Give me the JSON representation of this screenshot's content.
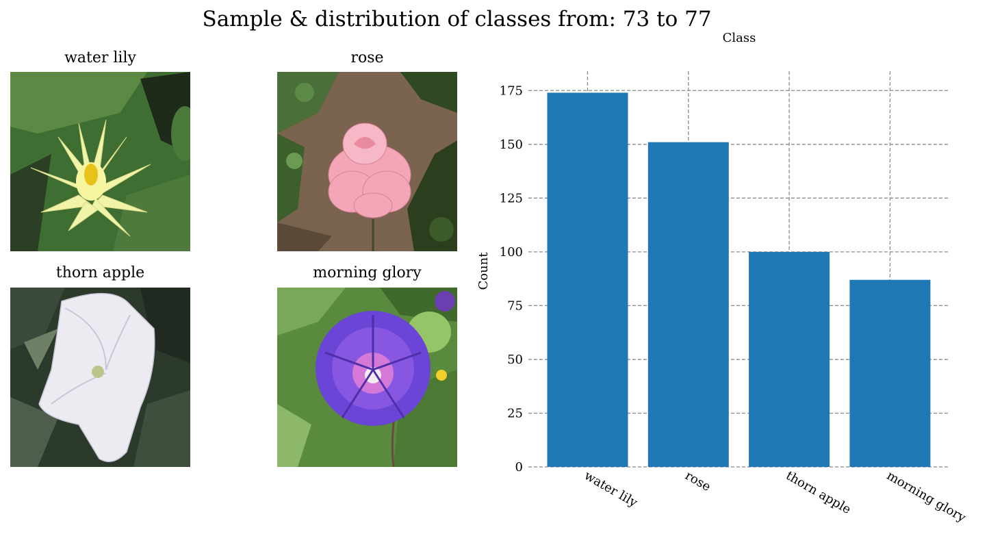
{
  "figure": {
    "title": "Sample & distribution of classes from: 73 to 77"
  },
  "samples": [
    {
      "label": "water lily",
      "icon": "water-lily-photo"
    },
    {
      "label": "rose",
      "icon": "rose-photo"
    },
    {
      "label": "thorn apple",
      "icon": "thorn-apple-photo"
    },
    {
      "label": "morning glory",
      "icon": "morning-glory-photo"
    }
  ],
  "chart_data": {
    "type": "bar",
    "title": "",
    "xlabel": "Class",
    "ylabel": "Count",
    "categories": [
      "water lily",
      "rose",
      "thorn apple",
      "morning glory"
    ],
    "values": [
      174,
      151,
      100,
      87
    ],
    "ylim": [
      0,
      184
    ],
    "yticks": [
      0,
      25,
      50,
      75,
      100,
      125,
      150,
      175
    ],
    "grid": true,
    "grid_style": "dashed",
    "bar_color": "#1f77b4",
    "xlabel_position": "top",
    "legend": "none"
  }
}
